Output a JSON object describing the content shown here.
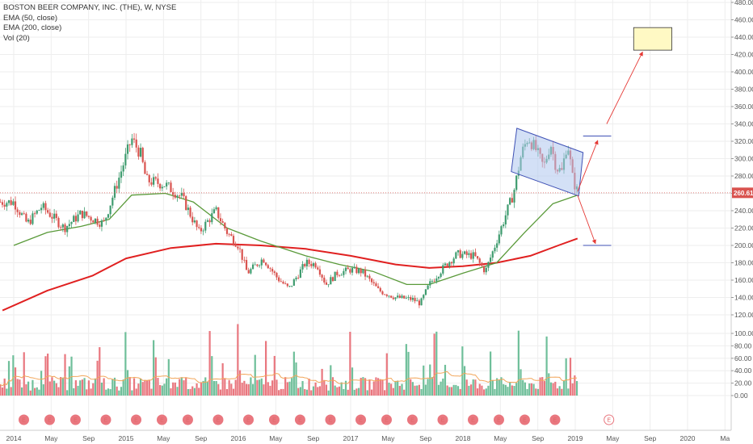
{
  "legend": {
    "title": "BOSTON BEER COMPANY, INC. (THE), W, NYSE",
    "ema50": "EMA (50, close)",
    "ema200": "EMA (200, close)",
    "vol": "Vol (20)"
  },
  "price_label": "260.61",
  "earnings_label": "E",
  "colors": {
    "up": "#6fbf9a",
    "down": "#e9777f",
    "candle_up": "#3f9c6f",
    "candle_down": "#d9534f",
    "ema50": "#5a9a3a",
    "ema200": "#e02020",
    "vol_ma": "#f2a65a",
    "annotation": "#e53935",
    "channel_fill": "#aec6ee",
    "channel_stroke": "#3f51b5",
    "target_fill": "#fff9c4",
    "target_stroke": "#333333",
    "level_line": "#3f51b5",
    "grid": "#eeeeee",
    "price_line": "#d9534f"
  },
  "chart_data": {
    "type": "candlestick",
    "x_tick_labels": [
      "2014",
      "May",
      "Sep",
      "2015",
      "May",
      "Sep",
      "2016",
      "May",
      "Sep",
      "2017",
      "May",
      "Sep",
      "2018",
      "May",
      "Sep",
      "2019",
      "May",
      "Sep",
      "2020",
      "Ma"
    ],
    "y_tick_labels": [
      "480.00",
      "460.00",
      "440.00",
      "420.00",
      "400.00",
      "380.00",
      "360.00",
      "340.00",
      "320.00",
      "300.00",
      "280.00",
      "260.00",
      "240.00",
      "220.00",
      "200.00",
      "180.00",
      "160.00",
      "140.00",
      "120.00"
    ],
    "volume_tick_labels": [
      "100.00",
      "80.00",
      "60.00",
      "40.00",
      "20.00",
      "0.00"
    ],
    "price_ylim": [
      112,
      482
    ],
    "volume_ylim": [
      0,
      120
    ],
    "last_price": 260.61,
    "price_anchors": [
      {
        "t": 2014.0,
        "p": 250
      },
      {
        "t": 2014.12,
        "p": 225
      },
      {
        "t": 2014.25,
        "p": 245
      },
      {
        "t": 2014.45,
        "p": 220
      },
      {
        "t": 2014.6,
        "p": 237
      },
      {
        "t": 2014.8,
        "p": 225
      },
      {
        "t": 2014.93,
        "p": 275
      },
      {
        "t": 2015.05,
        "p": 323
      },
      {
        "t": 2015.13,
        "p": 305
      },
      {
        "t": 2015.18,
        "p": 275
      },
      {
        "t": 2015.35,
        "p": 270
      },
      {
        "t": 2015.5,
        "p": 255
      },
      {
        "t": 2015.65,
        "p": 215
      },
      {
        "t": 2015.8,
        "p": 240
      },
      {
        "t": 2015.9,
        "p": 215
      },
      {
        "t": 2016.0,
        "p": 200
      },
      {
        "t": 2016.08,
        "p": 168
      },
      {
        "t": 2016.22,
        "p": 185
      },
      {
        "t": 2016.35,
        "p": 162
      },
      {
        "t": 2016.45,
        "p": 150
      },
      {
        "t": 2016.6,
        "p": 180
      },
      {
        "t": 2016.7,
        "p": 178
      },
      {
        "t": 2016.78,
        "p": 155
      },
      {
        "t": 2016.88,
        "p": 168
      },
      {
        "t": 2017.0,
        "p": 172
      },
      {
        "t": 2017.1,
        "p": 170
      },
      {
        "t": 2017.25,
        "p": 148
      },
      {
        "t": 2017.4,
        "p": 140
      },
      {
        "t": 2017.55,
        "p": 138
      },
      {
        "t": 2017.62,
        "p": 133
      },
      {
        "t": 2017.7,
        "p": 155
      },
      {
        "t": 2017.85,
        "p": 178
      },
      {
        "t": 2017.95,
        "p": 190
      },
      {
        "t": 2018.1,
        "p": 188
      },
      {
        "t": 2018.2,
        "p": 170
      },
      {
        "t": 2018.28,
        "p": 198
      },
      {
        "t": 2018.38,
        "p": 235
      },
      {
        "t": 2018.45,
        "p": 260
      },
      {
        "t": 2018.52,
        "p": 305
      },
      {
        "t": 2018.58,
        "p": 325
      },
      {
        "t": 2018.65,
        "p": 310
      },
      {
        "t": 2018.72,
        "p": 290
      },
      {
        "t": 2018.78,
        "p": 318
      },
      {
        "t": 2018.83,
        "p": 290
      },
      {
        "t": 2018.88,
        "p": 285
      },
      {
        "t": 2018.93,
        "p": 320
      },
      {
        "t": 2018.98,
        "p": 275
      },
      {
        "t": 2019.02,
        "p": 262
      }
    ],
    "ema50": [
      {
        "t": 2014.0,
        "p": 200
      },
      {
        "t": 2014.3,
        "p": 215
      },
      {
        "t": 2014.6,
        "p": 222
      },
      {
        "t": 2014.85,
        "p": 230
      },
      {
        "t": 2015.05,
        "p": 258
      },
      {
        "t": 2015.35,
        "p": 260
      },
      {
        "t": 2015.6,
        "p": 250
      },
      {
        "t": 2015.9,
        "p": 220
      },
      {
        "t": 2016.2,
        "p": 205
      },
      {
        "t": 2016.6,
        "p": 188
      },
      {
        "t": 2016.9,
        "p": 178
      },
      {
        "t": 2017.2,
        "p": 170
      },
      {
        "t": 2017.5,
        "p": 155
      },
      {
        "t": 2017.7,
        "p": 155
      },
      {
        "t": 2018.0,
        "p": 168
      },
      {
        "t": 2018.3,
        "p": 180
      },
      {
        "t": 2018.55,
        "p": 215
      },
      {
        "t": 2018.8,
        "p": 248
      },
      {
        "t": 2019.02,
        "p": 258
      }
    ],
    "ema200": [
      {
        "t": 2013.9,
        "p": 125
      },
      {
        "t": 2014.3,
        "p": 148
      },
      {
        "t": 2014.7,
        "p": 165
      },
      {
        "t": 2015.0,
        "p": 185
      },
      {
        "t": 2015.4,
        "p": 197
      },
      {
        "t": 2015.8,
        "p": 202
      },
      {
        "t": 2016.2,
        "p": 200
      },
      {
        "t": 2016.6,
        "p": 196
      },
      {
        "t": 2017.0,
        "p": 188
      },
      {
        "t": 2017.4,
        "p": 178
      },
      {
        "t": 2017.7,
        "p": 174
      },
      {
        "t": 2018.0,
        "p": 176
      },
      {
        "t": 2018.3,
        "p": 180
      },
      {
        "t": 2018.6,
        "p": 188
      },
      {
        "t": 2018.85,
        "p": 200
      },
      {
        "t": 2019.02,
        "p": 208
      }
    ],
    "earnings_dates": [
      2014.09,
      2014.32,
      2014.55,
      2014.82,
      2015.09,
      2015.32,
      2015.55,
      2015.82,
      2016.09,
      2016.32,
      2016.55,
      2016.82,
      2017.09,
      2017.32,
      2017.55,
      2017.82,
      2018.09,
      2018.32,
      2018.55,
      2018.82,
      2019.3
    ],
    "annotations": {
      "channel": [
        {
          "t": 2018.48,
          "p": 335
        },
        {
          "t": 2019.07,
          "p": 307
        },
        {
          "t": 2019.03,
          "p": 257
        },
        {
          "t": 2018.43,
          "p": 285
        }
      ],
      "upper_level": {
        "t1": 2019.07,
        "t2": 2019.32,
        "p": 326
      },
      "lower_level": {
        "t1": 2019.07,
        "t2": 2019.32,
        "p": 200
      },
      "target_box": {
        "t1": 2019.52,
        "t2": 2019.86,
        "p1": 451,
        "p2": 425
      },
      "arrows": [
        {
          "from": {
            "t": 2019.02,
            "p": 262
          },
          "to": {
            "t": 2019.2,
            "p": 321
          }
        },
        {
          "from": {
            "t": 2019.02,
            "p": 258
          },
          "to": {
            "t": 2019.18,
            "p": 202
          }
        },
        {
          "from": {
            "t": 2019.28,
            "p": 340
          },
          "to": {
            "t": 2019.6,
            "p": 423
          }
        }
      ]
    }
  }
}
